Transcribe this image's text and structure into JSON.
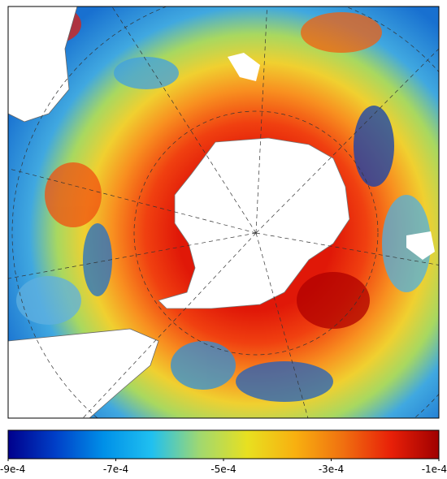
{
  "chart_data": {
    "type": "colormap",
    "colormap": [
      "#00008c",
      "#0040c8",
      "#0090e8",
      "#20c0f0",
      "#a0d870",
      "#e8e020",
      "#f8b010",
      "#f07010",
      "#e82008",
      "#a00000"
    ],
    "xlim": [
      -0.0009,
      -0.0001
    ],
    "xticks": [
      {
        "value": -0.0009,
        "label": "-9e-4"
      },
      {
        "value": -0.0007,
        "label": "-7e-4"
      },
      {
        "value": -0.0005,
        "label": "-5e-4"
      },
      {
        "value": -0.0003,
        "label": "-3e-4"
      },
      {
        "value": -0.0001,
        "label": "-1e-4"
      }
    ]
  }
}
